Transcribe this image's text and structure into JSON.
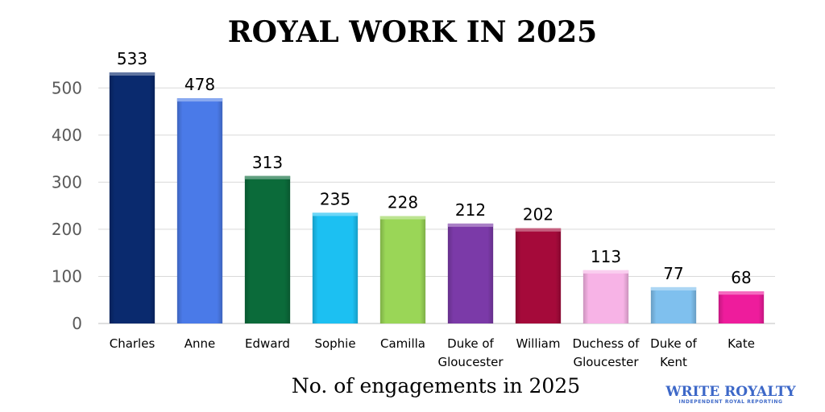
{
  "chart_data": {
    "type": "bar",
    "title": "ROYAL WORK IN 2025",
    "xlabel": "No. of engagements in 2025",
    "ylabel": "",
    "ylim": [
      0,
      550
    ],
    "yticks": [
      0,
      100,
      200,
      300,
      400,
      500
    ],
    "grid": true,
    "legend": "none",
    "categories": [
      [
        "Charles"
      ],
      [
        "Anne"
      ],
      [
        "Edward"
      ],
      [
        "Sophie"
      ],
      [
        "Camilla"
      ],
      [
        "Duke of",
        "Gloucester"
      ],
      [
        "William"
      ],
      [
        "Duchess of",
        "Gloucester"
      ],
      [
        "Duke of",
        "Kent"
      ],
      [
        "Kate"
      ]
    ],
    "values": [
      533,
      478,
      313,
      235,
      228,
      212,
      202,
      113,
      77,
      68
    ],
    "colors": [
      "#0a2a6e",
      "#4a7ae8",
      "#0b6b3a",
      "#1cc0f2",
      "#9ad657",
      "#7b3aa8",
      "#a50a3a",
      "#f7b3e6",
      "#7fc0ee",
      "#ee1c9c"
    ]
  },
  "watermark": {
    "logo_text": "WRITE ROYALTY",
    "tagline": "INDEPENDENT ROYAL REPORTING"
  }
}
